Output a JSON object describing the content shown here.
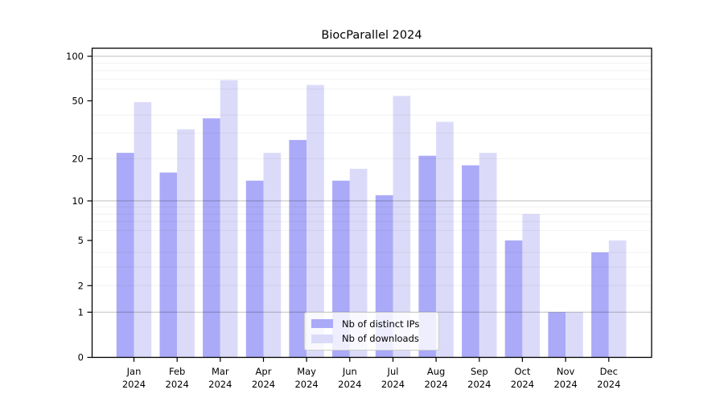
{
  "chart_data": {
    "type": "bar",
    "title": "BiocParallel 2024",
    "categories": [
      "Jan",
      "Feb",
      "Mar",
      "Apr",
      "May",
      "Jun",
      "Jul",
      "Aug",
      "Sep",
      "Oct",
      "Nov",
      "Dec"
    ],
    "year_label": "2024",
    "series": [
      {
        "name": "Nb of distinct IPs",
        "color": "#aaaaf8",
        "values": [
          22,
          16,
          38,
          14,
          27,
          14,
          11,
          21,
          18,
          5,
          1,
          4
        ]
      },
      {
        "name": "Nb of downloads",
        "color": "#dbdbf9",
        "values": [
          49,
          32,
          69,
          22,
          64,
          17,
          54,
          36,
          22,
          8,
          1,
          5
        ]
      }
    ],
    "xlabel": "",
    "ylabel": "",
    "yscale": "log1p",
    "ylim": [
      0,
      114
    ],
    "yticks": [
      0,
      1,
      2,
      5,
      10,
      20,
      50,
      100
    ],
    "grid": "horizontal",
    "grid_major": [
      1,
      10,
      100
    ],
    "grid_minor": [
      2,
      3,
      4,
      6,
      7,
      8,
      9,
      20,
      30,
      40,
      60,
      70,
      80,
      90
    ],
    "legend_position": "lower center",
    "colors": {
      "distinct_ips": "#aaaaf8",
      "downloads": "#dbdbf9",
      "grid_major": "#c2c2c2",
      "grid_minor": "#f0f0f0",
      "spine": "#000000",
      "text": "#000000"
    }
  }
}
